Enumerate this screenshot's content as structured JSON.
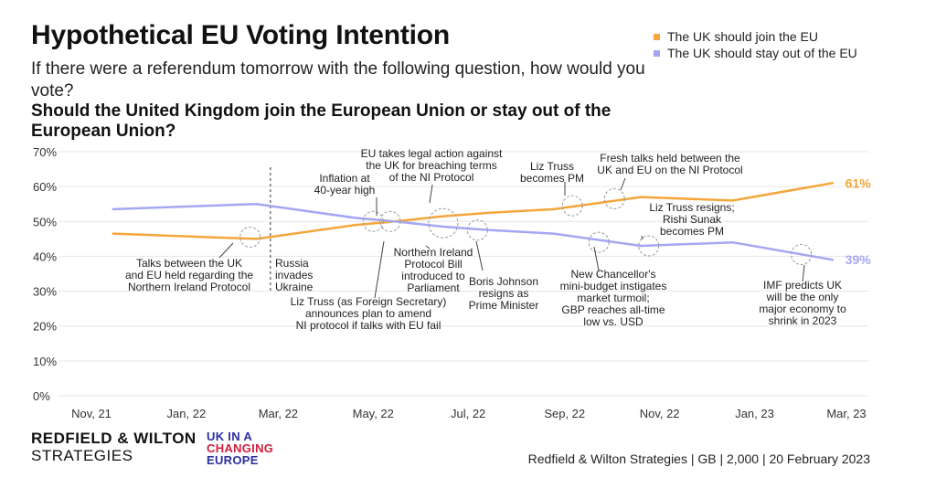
{
  "header": {
    "title": "Hypothetical EU Voting Intention",
    "subtitle": "If there were a referendum tomorrow with the following question, how would you vote?",
    "question": "Should the United Kingdom join the European Union or stay out of the European Union?"
  },
  "legend": {
    "items": [
      {
        "label": "The UK should join the EU",
        "color": "#f4a63a"
      },
      {
        "label": "The UK should stay out of the EU",
        "color": "#a4a7f2"
      }
    ]
  },
  "footer": {
    "brand_line1": "REDFIELD & WILTON",
    "brand_line2": "STRATEGIES",
    "partner_line1": "UK IN A",
    "partner_line2": "CHANGING",
    "partner_line3": "EUROPE",
    "source": "Redfield & Wilton Strategies | GB | 2,000 | 20 February 2023"
  },
  "colors": {
    "join": "#f4a63a",
    "stay": "#a4a7f2",
    "grid": "#e6e6e6",
    "annotation": "#999999",
    "partner_blue": "#2a2f9e",
    "partner_red": "#d11f3c"
  },
  "chart_data": {
    "type": "line",
    "x_ticks": [
      "Nov, 21",
      "Jan, 22",
      "Mar, 22",
      "May, 22",
      "Jul, 22",
      "Sep, 22",
      "Nov, 22",
      "Jan, 23",
      "Mar, 23"
    ],
    "y_ticks": [
      "0%",
      "10%",
      "20%",
      "30%",
      "40%",
      "50%",
      "60%",
      "70%"
    ],
    "ylim": [
      0,
      70
    ],
    "xlim": [
      "2021-11-01",
      "2023-03-01"
    ],
    "grid": true,
    "legend_position": "top-right",
    "series": [
      {
        "name": "The UK should join the EU",
        "color": "#f4a63a",
        "end_label": "61%",
        "points": [
          {
            "date": "2021-11-15",
            "value": 46.5
          },
          {
            "date": "2022-02-15",
            "value": 45
          },
          {
            "date": "2022-04-20",
            "value": 49
          },
          {
            "date": "2022-05-15",
            "value": 50
          },
          {
            "date": "2022-06-15",
            "value": 51.5
          },
          {
            "date": "2022-07-15",
            "value": 52.5
          },
          {
            "date": "2022-08-25",
            "value": 53.5
          },
          {
            "date": "2022-10-20",
            "value": 57
          },
          {
            "date": "2022-12-18",
            "value": 56
          },
          {
            "date": "2023-02-20",
            "value": 61
          }
        ]
      },
      {
        "name": "The UK should stay out of the EU",
        "color": "#a4a7f2",
        "end_label": "39%",
        "points": [
          {
            "date": "2021-11-15",
            "value": 53.5
          },
          {
            "date": "2022-02-15",
            "value": 55
          },
          {
            "date": "2022-04-20",
            "value": 51
          },
          {
            "date": "2022-05-15",
            "value": 50
          },
          {
            "date": "2022-06-15",
            "value": 48.5
          },
          {
            "date": "2022-07-15",
            "value": 47.5
          },
          {
            "date": "2022-08-25",
            "value": 46.5
          },
          {
            "date": "2022-10-20",
            "value": 43
          },
          {
            "date": "2022-12-18",
            "value": 44
          },
          {
            "date": "2023-02-20",
            "value": 39
          }
        ]
      }
    ],
    "annotations": [
      {
        "id": "talks",
        "text": [
          "Talks between the UK",
          "and EU held regarding the",
          "Northern Ireland Protocol"
        ],
        "date": "2022-02-11",
        "value": 45.5
      },
      {
        "id": "russia",
        "text": [
          "Russia",
          "invades",
          "Ukraine"
        ],
        "date": "2022-02-24",
        "value": null
      },
      {
        "id": "inflation",
        "text": [
          "Inflation at",
          "40-year high"
        ],
        "date": "2022-05-01",
        "value": 50
      },
      {
        "id": "truss_fs",
        "text": [
          "Liz Truss (as Foreign Secretary)",
          "announces plan to amend",
          "NI protocol if talks with EU fail"
        ],
        "date": "2022-05-12",
        "value": 50
      },
      {
        "id": "eu_legal",
        "text": [
          "EU takes legal action against",
          "the UK for breaching terms",
          "of the NI Protocol"
        ],
        "date": "2022-06-15",
        "value": 49.5
      },
      {
        "id": "ni_bill",
        "text": [
          "Northern Ireland",
          "Protocol Bill",
          "introduced to",
          "Parliament"
        ],
        "date": "2022-06-15",
        "value": 49.5
      },
      {
        "id": "johnson",
        "text": [
          "Boris Johnson",
          "resigns as",
          "Prime Minister"
        ],
        "date": "2022-07-07",
        "value": 47.5
      },
      {
        "id": "truss_pm",
        "text": [
          "Liz Truss",
          "becomes PM"
        ],
        "date": "2022-09-06",
        "value": 54.5
      },
      {
        "id": "minibudget",
        "text": [
          "New Chancellor's",
          "mini-budget instigates",
          "market turmoil;",
          "GBP reaches all-time",
          "low vs. USD"
        ],
        "date": "2022-09-23",
        "value": 44
      },
      {
        "id": "fresh_talks",
        "text": [
          "Fresh talks held between the",
          "UK and EU on the NI Protocol"
        ],
        "date": "2022-10-03",
        "value": 56.5
      },
      {
        "id": "sunak",
        "text": [
          "Liz Truss resigns;",
          "Rishi Sunak",
          "becomes PM"
        ],
        "date": "2022-10-25",
        "value": 43
      },
      {
        "id": "imf",
        "text": [
          "IMF predicts UK",
          "will be the only",
          "major economy to",
          "shrink in 2023"
        ],
        "date": "2023-01-31",
        "value": 40.5
      }
    ]
  }
}
